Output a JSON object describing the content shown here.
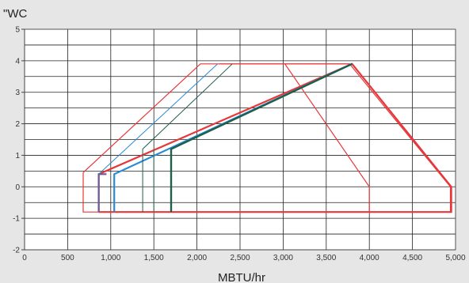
{
  "chart_data": {
    "type": "line",
    "title": "",
    "xlabel": "MBTU/hr",
    "ylabel": "\"WC",
    "xlim": [
      0,
      5000
    ],
    "ylim": [
      -2,
      5
    ],
    "x_ticks": [
      0,
      500,
      1000,
      1500,
      2000,
      2500,
      3000,
      3500,
      4000,
      4500,
      5000
    ],
    "x_tick_labels": [
      "0",
      "500",
      "1,000",
      "1,500",
      "2,000",
      "2,500",
      "3,000",
      "3,500",
      "4,000",
      "4,500",
      "5,000"
    ],
    "y_ticks": [
      -2,
      -1,
      0,
      1,
      2,
      3,
      4,
      5
    ],
    "y_tick_labels": [
      "-2",
      "-1",
      "0",
      "1",
      "2",
      "3",
      "4",
      "5"
    ],
    "grid": true,
    "legend": "none",
    "colors": {
      "background": "#e6e6e6",
      "plot_area": "#ffffff",
      "grid": "#222222",
      "red": "#e8373a",
      "blue": "#2a8ad4",
      "dark_green": "#1e5f4c",
      "mid_green": "#2f6f54",
      "purple": "#6b5a8e"
    },
    "series": [
      {
        "color": "#e8373a",
        "width": 1.2,
        "x": [
          680,
          2040,
          3770,
          4940,
          4940,
          680,
          680
        ],
        "y": [
          0.45,
          3.9,
          3.9,
          0.0,
          -0.8,
          -0.8,
          0.45
        ]
      },
      {
        "color": "#e8373a",
        "width": 2.2,
        "x": [
          860,
          860,
          3800,
          4950,
          4950,
          860
        ],
        "y": [
          -0.8,
          0.4,
          3.9,
          0.0,
          -0.8,
          -0.8
        ]
      },
      {
        "color": "#e8373a",
        "width": 1.2,
        "x": [
          3020,
          4000,
          4000
        ],
        "y": [
          3.9,
          0.0,
          -0.8
        ]
      },
      {
        "color": "#e8373a",
        "width": 1.2,
        "x": [
          2260,
          3770
        ],
        "y": [
          3.9,
          3.9
        ]
      },
      {
        "color": "#6b5a8e",
        "width": 2.2,
        "x": [
          860,
          860,
          950
        ],
        "y": [
          -0.8,
          0.4,
          0.4
        ]
      },
      {
        "color": "#2a8ad4",
        "width": 2.2,
        "x": [
          1040,
          1040,
          3800
        ],
        "y": [
          -0.8,
          0.4,
          3.9
        ]
      },
      {
        "color": "#2a8ad4",
        "width": 1.0,
        "x": [
          860,
          2240
        ],
        "y": [
          0.4,
          3.9
        ]
      },
      {
        "color": "#1e5f4c",
        "width": 1.0,
        "x": [
          1370,
          1370,
          2410
        ],
        "y": [
          -0.8,
          1.2,
          3.9
        ]
      },
      {
        "color": "#1e5f4c",
        "width": 2.4,
        "x": [
          1700,
          1700,
          3800
        ],
        "y": [
          -0.8,
          1.2,
          3.9
        ]
      },
      {
        "color": "#2f6f54",
        "width": 1.0,
        "x": [
          1500,
          1500
        ],
        "y": [
          -0.8,
          1.2
        ]
      }
    ]
  }
}
